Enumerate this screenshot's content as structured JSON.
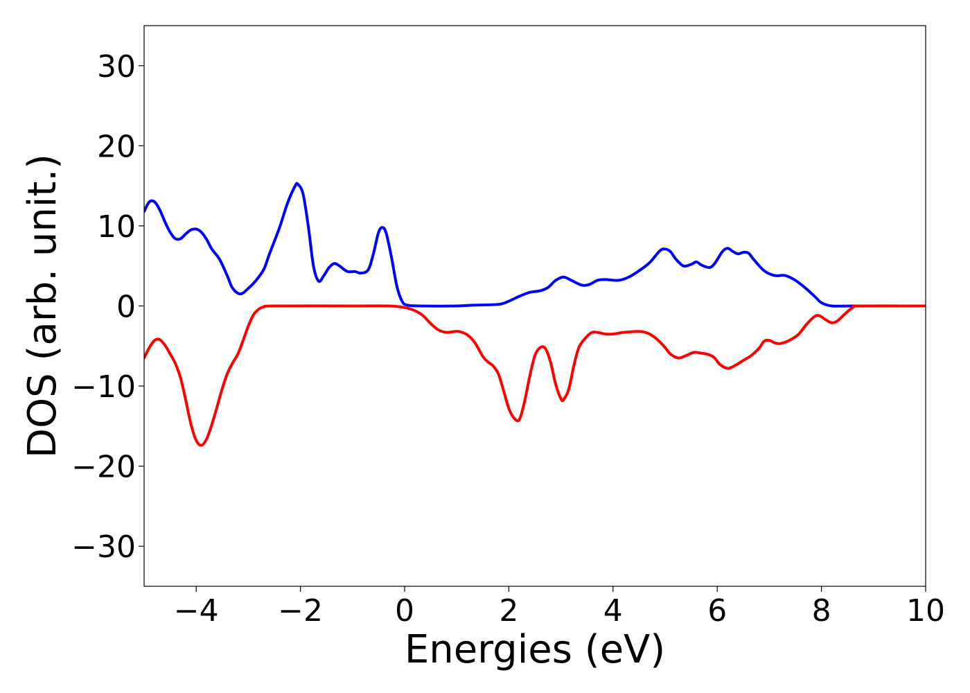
{
  "chart_data": {
    "type": "line",
    "title": "",
    "xlabel": "Energies (eV)",
    "ylabel": "DOS (arb. unit.)",
    "xlim": [
      -5,
      10
    ],
    "ylim": [
      -35,
      35
    ],
    "xticks": [
      -4,
      -2,
      0,
      2,
      4,
      6,
      8,
      10
    ],
    "xtick_labels": [
      "−4",
      "−2",
      "0",
      "2",
      "4",
      "6",
      "8",
      "10"
    ],
    "yticks": [
      30,
      20,
      10,
      0,
      -10,
      -20,
      -30
    ],
    "ytick_labels": [
      "30",
      "20",
      "10",
      "0",
      "−10",
      "−20",
      "−30"
    ],
    "grid": false,
    "legend": "none",
    "series": [
      {
        "color": "#0000ff",
        "points": [
          [
            -5.0,
            11.8
          ],
          [
            -4.9,
            13.0
          ],
          [
            -4.8,
            13.0
          ],
          [
            -4.7,
            12.0
          ],
          [
            -4.6,
            10.5
          ],
          [
            -4.5,
            9.2
          ],
          [
            -4.4,
            8.4
          ],
          [
            -4.3,
            8.4
          ],
          [
            -4.2,
            9.0
          ],
          [
            -4.1,
            9.5
          ],
          [
            -4.0,
            9.6
          ],
          [
            -3.9,
            9.2
          ],
          [
            -3.8,
            8.3
          ],
          [
            -3.7,
            7.1
          ],
          [
            -3.55,
            5.8
          ],
          [
            -3.4,
            3.7
          ],
          [
            -3.3,
            2.2
          ],
          [
            -3.15,
            1.5
          ],
          [
            -3.0,
            2.2
          ],
          [
            -2.85,
            3.2
          ],
          [
            -2.7,
            4.6
          ],
          [
            -2.6,
            6.4
          ],
          [
            -2.4,
            9.8
          ],
          [
            -2.25,
            12.8
          ],
          [
            -2.1,
            15.0
          ],
          [
            -2.05,
            15.2
          ],
          [
            -1.95,
            14.0
          ],
          [
            -1.85,
            10.0
          ],
          [
            -1.75,
            5.0
          ],
          [
            -1.65,
            3.1
          ],
          [
            -1.55,
            3.8
          ],
          [
            -1.45,
            4.8
          ],
          [
            -1.35,
            5.3
          ],
          [
            -1.25,
            5.0
          ],
          [
            -1.1,
            4.3
          ],
          [
            -0.95,
            4.3
          ],
          [
            -0.85,
            4.1
          ],
          [
            -0.7,
            4.5
          ],
          [
            -0.6,
            6.5
          ],
          [
            -0.5,
            9.2
          ],
          [
            -0.42,
            9.8
          ],
          [
            -0.35,
            9.0
          ],
          [
            -0.25,
            6.0
          ],
          [
            -0.15,
            2.5
          ],
          [
            -0.05,
            0.6
          ],
          [
            0.05,
            0.1
          ],
          [
            0.3,
            0.0
          ],
          [
            1.0,
            0.0
          ],
          [
            1.3,
            0.1
          ],
          [
            1.8,
            0.2
          ],
          [
            2.0,
            0.6
          ],
          [
            2.2,
            1.2
          ],
          [
            2.4,
            1.7
          ],
          [
            2.6,
            1.9
          ],
          [
            2.75,
            2.3
          ],
          [
            2.9,
            3.2
          ],
          [
            3.05,
            3.6
          ],
          [
            3.2,
            3.2
          ],
          [
            3.4,
            2.6
          ],
          [
            3.55,
            2.7
          ],
          [
            3.7,
            3.2
          ],
          [
            3.85,
            3.3
          ],
          [
            4.1,
            3.2
          ],
          [
            4.3,
            3.6
          ],
          [
            4.5,
            4.4
          ],
          [
            4.7,
            5.4
          ],
          [
            4.9,
            6.9
          ],
          [
            5.0,
            7.1
          ],
          [
            5.1,
            6.8
          ],
          [
            5.2,
            5.9
          ],
          [
            5.35,
            5.0
          ],
          [
            5.5,
            5.2
          ],
          [
            5.6,
            5.5
          ],
          [
            5.7,
            5.1
          ],
          [
            5.85,
            4.8
          ],
          [
            5.95,
            5.3
          ],
          [
            6.1,
            6.8
          ],
          [
            6.2,
            7.2
          ],
          [
            6.3,
            6.8
          ],
          [
            6.4,
            6.5
          ],
          [
            6.5,
            6.7
          ],
          [
            6.6,
            6.6
          ],
          [
            6.7,
            5.8
          ],
          [
            6.9,
            4.4
          ],
          [
            7.1,
            3.8
          ],
          [
            7.3,
            3.8
          ],
          [
            7.5,
            3.2
          ],
          [
            7.7,
            2.2
          ],
          [
            7.9,
            1.0
          ],
          [
            8.0,
            0.4
          ],
          [
            8.2,
            0.0
          ],
          [
            8.6,
            0.0
          ],
          [
            10.0,
            0.0
          ]
        ]
      },
      {
        "color": "#ff0000",
        "points": [
          [
            -5.0,
            -6.5
          ],
          [
            -4.9,
            -5.2
          ],
          [
            -4.8,
            -4.3
          ],
          [
            -4.7,
            -4.2
          ],
          [
            -4.6,
            -4.9
          ],
          [
            -4.5,
            -6.0
          ],
          [
            -4.4,
            -7.2
          ],
          [
            -4.3,
            -9.0
          ],
          [
            -4.2,
            -11.8
          ],
          [
            -4.1,
            -14.8
          ],
          [
            -4.0,
            -16.8
          ],
          [
            -3.9,
            -17.4
          ],
          [
            -3.8,
            -16.6
          ],
          [
            -3.7,
            -14.8
          ],
          [
            -3.6,
            -12.6
          ],
          [
            -3.5,
            -10.3
          ],
          [
            -3.4,
            -8.4
          ],
          [
            -3.3,
            -7.1
          ],
          [
            -3.2,
            -6.0
          ],
          [
            -3.1,
            -4.3
          ],
          [
            -3.0,
            -2.5
          ],
          [
            -2.9,
            -1.1
          ],
          [
            -2.8,
            -0.4
          ],
          [
            -2.7,
            -0.1
          ],
          [
            -2.5,
            0.0
          ],
          [
            -1.0,
            0.0
          ],
          [
            -0.3,
            0.0
          ],
          [
            0.0,
            -0.2
          ],
          [
            0.2,
            -0.6
          ],
          [
            0.35,
            -1.2
          ],
          [
            0.5,
            -2.2
          ],
          [
            0.65,
            -3.0
          ],
          [
            0.8,
            -3.3
          ],
          [
            0.95,
            -3.2
          ],
          [
            1.05,
            -3.2
          ],
          [
            1.2,
            -3.6
          ],
          [
            1.35,
            -4.6
          ],
          [
            1.5,
            -6.3
          ],
          [
            1.6,
            -7.0
          ],
          [
            1.7,
            -7.5
          ],
          [
            1.8,
            -8.5
          ],
          [
            1.9,
            -10.6
          ],
          [
            2.0,
            -12.8
          ],
          [
            2.1,
            -14.0
          ],
          [
            2.2,
            -14.2
          ],
          [
            2.3,
            -12.0
          ],
          [
            2.4,
            -8.8
          ],
          [
            2.5,
            -6.2
          ],
          [
            2.6,
            -5.2
          ],
          [
            2.7,
            -5.3
          ],
          [
            2.8,
            -7.0
          ],
          [
            2.9,
            -9.8
          ],
          [
            3.0,
            -11.6
          ],
          [
            3.05,
            -11.7
          ],
          [
            3.15,
            -10.4
          ],
          [
            3.25,
            -7.4
          ],
          [
            3.35,
            -5.1
          ],
          [
            3.5,
            -3.8
          ],
          [
            3.6,
            -3.3
          ],
          [
            3.7,
            -3.3
          ],
          [
            3.85,
            -3.5
          ],
          [
            4.0,
            -3.5
          ],
          [
            4.2,
            -3.3
          ],
          [
            4.4,
            -3.2
          ],
          [
            4.55,
            -3.2
          ],
          [
            4.7,
            -3.5
          ],
          [
            4.85,
            -4.2
          ],
          [
            5.0,
            -5.2
          ],
          [
            5.1,
            -6.0
          ],
          [
            5.25,
            -6.5
          ],
          [
            5.4,
            -6.2
          ],
          [
            5.55,
            -5.8
          ],
          [
            5.7,
            -5.9
          ],
          [
            5.85,
            -6.1
          ],
          [
            5.95,
            -6.5
          ],
          [
            6.05,
            -7.3
          ],
          [
            6.2,
            -7.8
          ],
          [
            6.35,
            -7.4
          ],
          [
            6.5,
            -6.8
          ],
          [
            6.65,
            -6.2
          ],
          [
            6.8,
            -5.3
          ],
          [
            6.9,
            -4.4
          ],
          [
            7.0,
            -4.3
          ],
          [
            7.1,
            -4.6
          ],
          [
            7.2,
            -4.7
          ],
          [
            7.35,
            -4.4
          ],
          [
            7.55,
            -3.6
          ],
          [
            7.7,
            -2.4
          ],
          [
            7.85,
            -1.4
          ],
          [
            7.95,
            -1.2
          ],
          [
            8.1,
            -1.8
          ],
          [
            8.2,
            -2.1
          ],
          [
            8.3,
            -1.9
          ],
          [
            8.45,
            -1.0
          ],
          [
            8.6,
            -0.2
          ],
          [
            8.75,
            0.0
          ],
          [
            10.0,
            0.0
          ]
        ]
      }
    ]
  }
}
